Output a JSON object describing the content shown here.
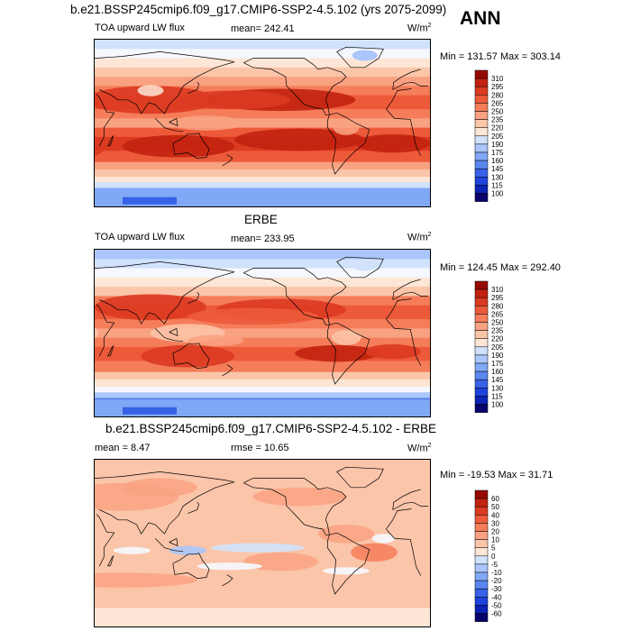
{
  "season": "ANN",
  "palette": {
    "colors": [
      "#08026b",
      "#0a23b4",
      "#1e42dc",
      "#3761e6",
      "#5a86f0",
      "#81a8f6",
      "#aac6fa",
      "#d1e2fc",
      "#f6f8ff",
      "#fde6d6",
      "#fbc5a9",
      "#f9a282",
      "#f57d5a",
      "#ed5a3a",
      "#dc3a21",
      "#c2220f",
      "#960a05"
    ]
  },
  "panels": [
    {
      "title": "b.e21.BSSP245cmip6.f09_g17.CMIP6-SSP2-4.5.102 (yrs 2075-2099)",
      "left_label": "TOA upward LW flux",
      "center_label": "mean= 242.41",
      "units": "W/m",
      "units_sup": "2",
      "minmax": "Min = 131.57 Max = 303.14",
      "cbar_labels": [
        "310",
        "295",
        "280",
        "265",
        "250",
        "235",
        "220",
        "205",
        "190",
        "175",
        "160",
        "145",
        "130",
        "115",
        "100"
      ],
      "map": "model"
    },
    {
      "title": "ERBE",
      "left_label": "TOA upward LW flux",
      "center_label": "mean= 233.95",
      "units": "W/m",
      "units_sup": "2",
      "minmax": "Min = 124.45 Max = 292.40",
      "cbar_labels": [
        "310",
        "295",
        "280",
        "265",
        "250",
        "235",
        "220",
        "205",
        "190",
        "175",
        "160",
        "145",
        "130",
        "115",
        "100"
      ],
      "map": "obs"
    },
    {
      "title": "b.e21.BSSP245cmip6.f09_g17.CMIP6-SSP2-4.5.102 - ERBE",
      "left_label": "mean =  8.47",
      "center_label": "rmse =  10.65",
      "units": "W/m",
      "units_sup": "2",
      "minmax": "Min = -19.53 Max =  31.71",
      "cbar_labels": [
        "60",
        "50",
        "40",
        "30",
        "20",
        "10",
        "5",
        "0",
        "-5",
        "-10",
        "-20",
        "-30",
        "-40",
        "-50",
        "-60"
      ],
      "map": "diff"
    }
  ]
}
